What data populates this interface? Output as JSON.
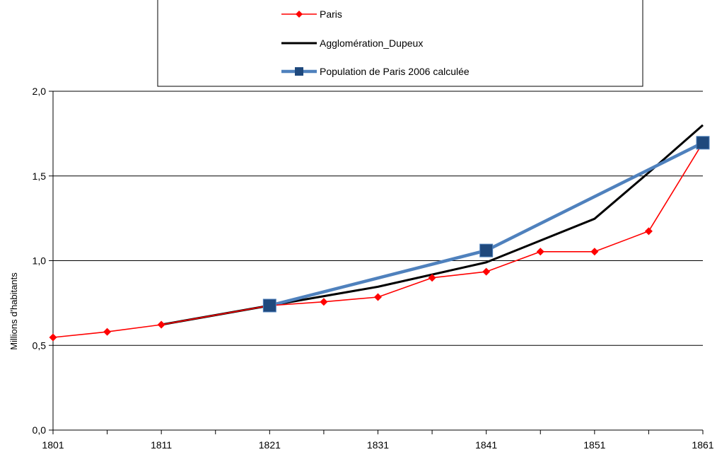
{
  "chart_data": {
    "type": "line",
    "title": "",
    "xlabel": "",
    "ylabel": "Millions d'habitants",
    "xlim": [
      1801,
      1861
    ],
    "ylim": [
      0,
      2
    ],
    "x_ticks": [
      1801,
      1811,
      1821,
      1831,
      1841,
      1851,
      1861
    ],
    "x_tick_labels": [
      "1801",
      "1811",
      "1821",
      "1831",
      "1841",
      "1851",
      "1861"
    ],
    "y_ticks": [
      0,
      0.5,
      1,
      1.5,
      2
    ],
    "y_tick_labels": [
      "0,0",
      "0,5",
      "1,0",
      "1,5",
      "2,0"
    ],
    "grid": "horizontal",
    "legend_position": "top",
    "series": [
      {
        "name": "Paris",
        "color": "#ff0000",
        "marker": "diamond",
        "x": [
          1801,
          1806,
          1811,
          1821,
          1826,
          1831,
          1836,
          1841,
          1846,
          1851,
          1856,
          1861
        ],
        "values": [
          0.547,
          0.58,
          0.622,
          0.735,
          0.757,
          0.785,
          0.899,
          0.935,
          1.053,
          1.053,
          1.174,
          1.696
        ]
      },
      {
        "name": "Agglomération_Dupeux",
        "color": "#000000",
        "marker": "none",
        "x": [
          1811,
          1821,
          1831,
          1841,
          1851,
          1856,
          1861
        ],
        "values": [
          0.622,
          0.735,
          0.846,
          0.99,
          1.247,
          1.52,
          1.8
        ]
      },
      {
        "name": "Population de Paris 2006 calculée",
        "color": "#4f81bd",
        "marker_color": "#1f497d",
        "marker": "square",
        "x": [
          1821,
          1841,
          1861
        ],
        "values": [
          0.735,
          1.06,
          1.696
        ]
      }
    ]
  }
}
